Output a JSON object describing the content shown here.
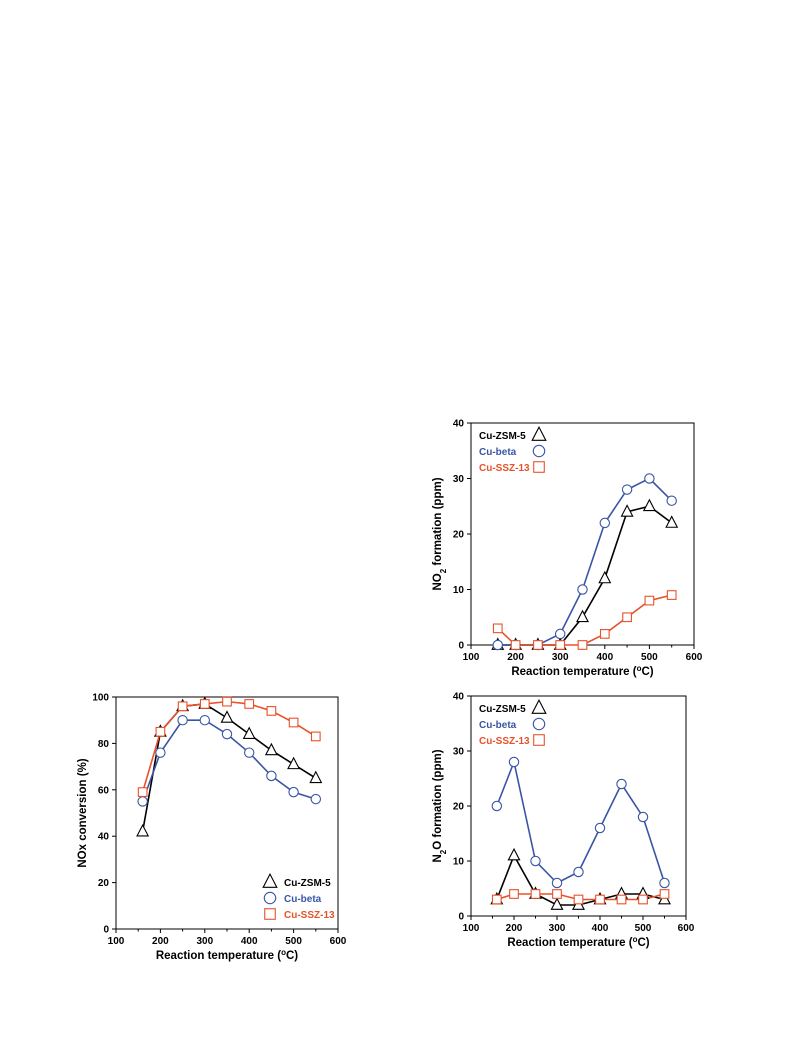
{
  "colors": {
    "cu_zsm5": "#000000",
    "cu_beta": "#3a55a4",
    "cu_ssz13": "#e8522a",
    "frame": "#000000"
  },
  "chart_data": [
    {
      "id": "no2",
      "type": "line",
      "title": "",
      "xlabel": "Reaction temperature (",
      "xlabel_unit": "oC",
      "ylabel": "NO2 formation (ppm)",
      "xlim": [
        100,
        600
      ],
      "ylim": [
        0,
        40
      ],
      "xticks": [
        "100",
        "200",
        "300",
        "400",
        "500",
        "600"
      ],
      "yticks": [
        "0",
        "10",
        "20",
        "30",
        "40"
      ],
      "grid": false,
      "legend_position": "top-left",
      "series": [
        {
          "name": "Cu-ZSM-5",
          "marker": "triangle",
          "color": "#000000",
          "x": [
            160,
            200,
            250,
            300,
            350,
            400,
            450,
            500,
            550
          ],
          "y": [
            0,
            0,
            0,
            0,
            5,
            12,
            24,
            25,
            22
          ]
        },
        {
          "name": "Cu-beta",
          "marker": "circle",
          "color": "#3a55a4",
          "x": [
            160,
            200,
            250,
            300,
            350,
            400,
            450,
            500,
            550
          ],
          "y": [
            0,
            0,
            0,
            2,
            10,
            22,
            28,
            30,
            26
          ]
        },
        {
          "name": "Cu-SSZ-13",
          "marker": "square",
          "color": "#e8522a",
          "x": [
            160,
            200,
            250,
            300,
            350,
            400,
            450,
            500,
            550
          ],
          "y": [
            3,
            0,
            0,
            0,
            0,
            2,
            5,
            8,
            9
          ]
        }
      ]
    },
    {
      "id": "nox",
      "type": "line",
      "title": "",
      "xlabel": "Reaction temperature (",
      "xlabel_unit": "oC",
      "ylabel": "NOx conversion (%)",
      "xlim": [
        100,
        600
      ],
      "ylim": [
        0,
        100
      ],
      "xticks": [
        "100",
        "200",
        "300",
        "400",
        "500",
        "600"
      ],
      "yticks": [
        "0",
        "20",
        "40",
        "60",
        "80",
        "100"
      ],
      "grid": false,
      "legend_position": "bottom-right",
      "series": [
        {
          "name": "Cu-ZSM-5",
          "marker": "triangle",
          "color": "#000000",
          "x": [
            160,
            200,
            250,
            300,
            350,
            400,
            450,
            500,
            550
          ],
          "y": [
            42,
            85,
            96,
            97,
            91,
            84,
            77,
            71,
            65
          ]
        },
        {
          "name": "Cu-beta",
          "marker": "circle",
          "color": "#3a55a4",
          "x": [
            160,
            200,
            250,
            300,
            350,
            400,
            450,
            500,
            550
          ],
          "y": [
            55,
            76,
            90,
            90,
            84,
            76,
            66,
            59,
            56
          ]
        },
        {
          "name": "Cu-SSZ-13",
          "marker": "square",
          "color": "#e8522a",
          "x": [
            160,
            200,
            250,
            300,
            350,
            400,
            450,
            500,
            550
          ],
          "y": [
            59,
            85,
            96,
            97,
            98,
            97,
            94,
            89,
            83
          ]
        }
      ]
    },
    {
      "id": "n2o",
      "type": "line",
      "title": "",
      "xlabel": "Reaction temperature (",
      "xlabel_unit": "oC",
      "ylabel": "N2O formation (ppm)",
      "xlim": [
        100,
        600
      ],
      "ylim": [
        0,
        40
      ],
      "xticks": [
        "100",
        "200",
        "300",
        "400",
        "500",
        "600"
      ],
      "yticks": [
        "0",
        "10",
        "20",
        "30",
        "40"
      ],
      "grid": false,
      "legend_position": "top-left",
      "series": [
        {
          "name": "Cu-ZSM-5",
          "marker": "triangle",
          "color": "#000000",
          "x": [
            160,
            200,
            250,
            300,
            350,
            400,
            450,
            500,
            550
          ],
          "y": [
            3,
            11,
            4,
            2,
            2,
            3,
            4,
            4,
            3
          ]
        },
        {
          "name": "Cu-beta",
          "marker": "circle",
          "color": "#3a55a4",
          "x": [
            160,
            200,
            250,
            300,
            350,
            400,
            450,
            500,
            550
          ],
          "y": [
            20,
            28,
            10,
            6,
            8,
            16,
            24,
            18,
            6
          ]
        },
        {
          "name": "Cu-SSZ-13",
          "marker": "square",
          "color": "#e8522a",
          "x": [
            160,
            200,
            250,
            300,
            350,
            400,
            450,
            500,
            550
          ],
          "y": [
            3,
            4,
            4,
            4,
            3,
            3,
            3,
            3,
            4
          ]
        }
      ]
    }
  ]
}
